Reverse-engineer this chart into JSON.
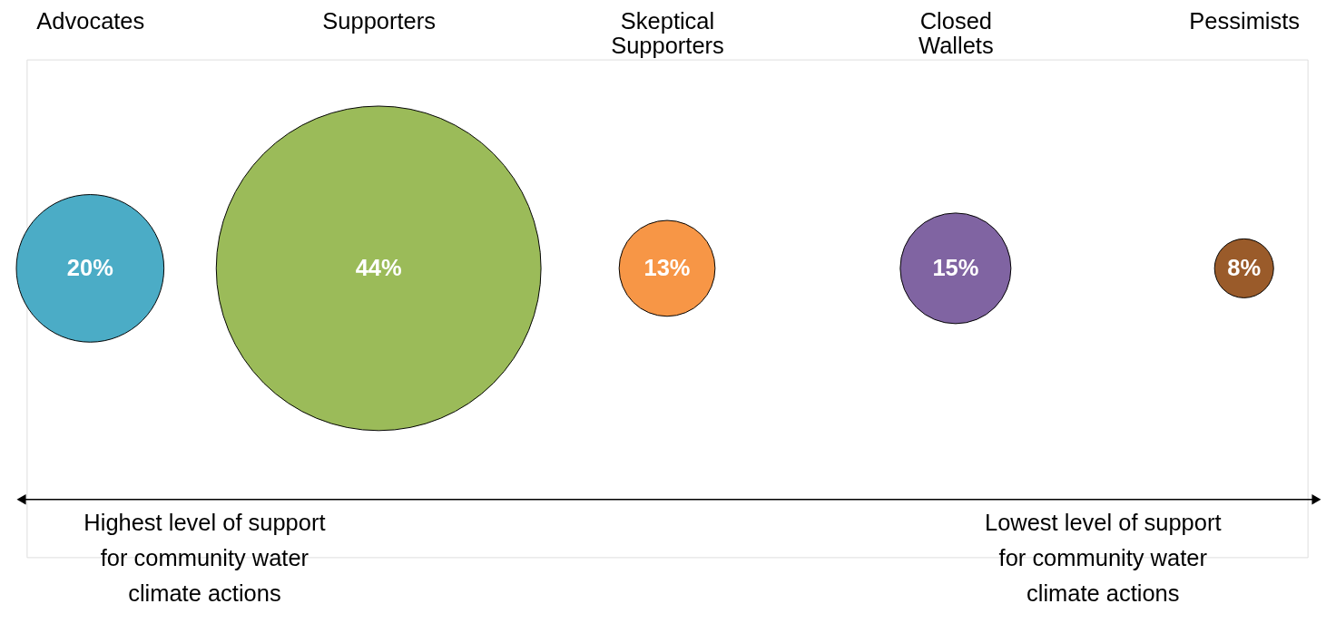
{
  "chart_data": {
    "type": "other",
    "categories": [
      "Advocates",
      "Supporters",
      "Skeptical Supporters",
      "Closed Wallets",
      "Pessimists"
    ],
    "values": [
      20,
      44,
      13,
      15,
      8
    ],
    "value_labels": [
      "20%",
      "44%",
      "13%",
      "15%",
      "8%"
    ],
    "colors": [
      "#4bacc6",
      "#9bbb59",
      "#f79646",
      "#8064a2",
      "#9a5b2a"
    ],
    "annotations": [
      "Highest level of support\nfor community water\nclimate actions",
      "Lowest level of support\nfor community water\nclimate actions"
    ]
  }
}
